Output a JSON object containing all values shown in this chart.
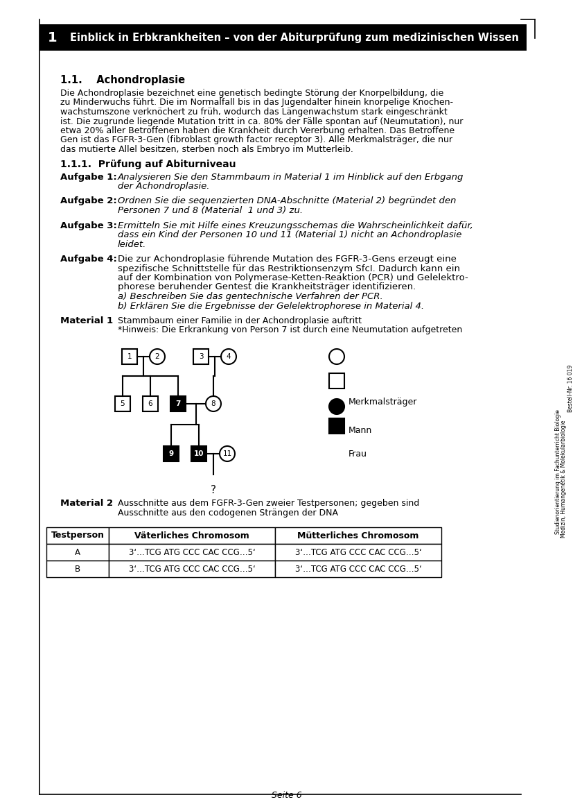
{
  "title_box_number": "1",
  "title_text": "Einblick in Erbkrankheiten – von der Abiturprüfung zum medizinischen Wissen",
  "section_title": "1.1.    Achondroplasie",
  "body_lines": [
    "Die Achondroplasie bezeichnet eine genetisch bedingte Störung der Knorpelbildung, die",
    "zu Minderwuchs führt. Die im Normalfall bis in das Jugendalter hinein knorpelige Knochen-",
    "wachstumszone verknöchert zu früh, wodurch das Längenwachstum stark eingeschränkt",
    "ist. Die zugrunde liegende Mutation tritt in ca. 80% der Fälle spontan auf (Neumutation), nur",
    "etwa 20% aller Betroffenen haben die Krankheit durch Vererbung erhalten. Das Betroffene",
    "Gen ist das FGFR-3-Gen (fibroblast growth factor receptor 3). Alle Merkmalsträger, die nur",
    "das mutierte Allel besitzen, sterben noch als Embryo im Mutterleib."
  ],
  "subsection_title": "1.1.1.  Prüfung auf Abiturniveau",
  "aufgaben": [
    {
      "label": "Aufgabe 1:",
      "lines": [
        "Analysieren Sie den Stammbaum in Material 1 im Hinblick auf den Erbgang",
        "der Achondroplasie."
      ],
      "italic": true
    },
    {
      "label": "Aufgabe 2:",
      "lines": [
        "Ordnen Sie die sequenzierten DNA-Abschnitte (Material 2) begründet den",
        "Personen 7 und 8 (Material  1 und 3) zu."
      ],
      "italic": true
    },
    {
      "label": "Aufgabe 3:",
      "lines": [
        "Ermitteln Sie mit Hilfe eines Kreuzungsschemas die Wahrscheinlichkeit dafür,",
        "dass ein Kind der Personen 10 und 11 (Material 1) nicht an Achondroplasie",
        "leidet."
      ],
      "italic": true
    },
    {
      "label": "Aufgabe 4:",
      "lines": [
        "Die zur Achondroplasie führende Mutation des FGFR-3-Gens erzeugt eine",
        "spezifische Schnittstelle für das Restriktionsenzym SfcI. Dadurch kann ein",
        "auf der Kombination von Polymerase-Ketten-Reaktion (PCR) und Gelelektro-",
        "phorese beruhender Gentest die Krankheitsträger identifizieren."
      ],
      "italic": false,
      "extra_italic": [
        "a) Beschreiben Sie das gentechnische Verfahren der PCR.",
        "b) Erklären Sie die Ergebnisse der Gelelektrophorese in Material 4."
      ]
    }
  ],
  "material1_label": "Material 1",
  "material1_lines": [
    "Stammbaum einer Familie in der Achondroplasie auftritt",
    "*Hinweis: Die Erkrankung von Person 7 ist durch eine Neumutation aufgetreten"
  ],
  "material2_label": "Material 2",
  "material2_lines": [
    "Ausschnitte aus dem FGFR-3-Gen zweier Testpersonen; gegeben sind",
    "Ausschnitte aus den codogenen Strängen der DNA"
  ],
  "table_header": [
    "Testperson",
    "Väterliches Chromosom",
    "Mütterliches Chromosom"
  ],
  "table_rows": [
    [
      "A",
      "3‘…TCG ATG CCC CAC CCG…5‘",
      "3‘…TCG ATG CCC CAC CCG…5‘"
    ],
    [
      "B",
      "3‘…TCG ATG CCC CAC CCG…5‘",
      "3‘…TCG ATG CCC CAC CCG…5‘"
    ]
  ],
  "legend_frau": "Frau",
  "legend_mann": "Mann",
  "legend_merkmal": "Merkmalsträger",
  "page_number": "Seite 6",
  "sidebar_line1": "Studienorientierung im Fachunterricht Biologie",
  "sidebar_line2": "Medizin, Humangenetik & Molekularbiologie",
  "sidebar_line3": "Bestell-Nr. 16 019",
  "bg_color": "#ffffff"
}
